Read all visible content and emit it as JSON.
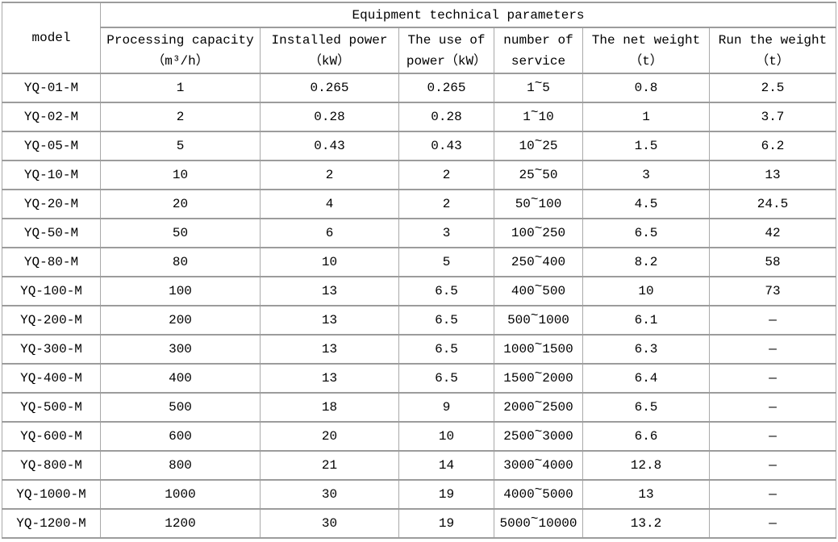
{
  "colors": {
    "background": "#ffffff",
    "grid_border": "#9c9c9c",
    "text": "#000000"
  },
  "table": {
    "title": "Equipment technical parameters",
    "model_header": "model",
    "columns": [
      {
        "id": "processing-capacity",
        "line1": "Processing capacity",
        "line2": "（m³/h）"
      },
      {
        "id": "installed-power",
        "line1": "Installed power",
        "line2": "（kW）"
      },
      {
        "id": "use-of-power",
        "line1": "The use of",
        "line2": "power（kW）"
      },
      {
        "id": "number-of-service",
        "line1": "number of",
        "line2": "service"
      },
      {
        "id": "net-weight",
        "line1": "The net weight",
        "line2": "（t）"
      },
      {
        "id": "run-weight",
        "line1": "Run the weight",
        "line2": "（t）"
      }
    ],
    "rows": [
      [
        "YQ-01-M",
        "1",
        "0.265",
        "0.265",
        "1~5",
        "0.8",
        "2.5"
      ],
      [
        "YQ-02-M",
        "2",
        "0.28",
        "0.28",
        "1~10",
        "1",
        "3.7"
      ],
      [
        "YQ-05-M",
        "5",
        "0.43",
        "0.43",
        "10~25",
        "1.5",
        "6.2"
      ],
      [
        "YQ-10-M",
        "10",
        "2",
        "2",
        "25~50",
        "3",
        "13"
      ],
      [
        "YQ-20-M",
        "20",
        "4",
        "2",
        "50~100",
        "4.5",
        "24.5"
      ],
      [
        "YQ-50-M",
        "50",
        "6",
        "3",
        "100~250",
        "6.5",
        "42"
      ],
      [
        "YQ-80-M",
        "80",
        "10",
        "5",
        "250~400",
        "8.2",
        "58"
      ],
      [
        "YQ-100-M",
        "100",
        "13",
        "6.5",
        "400~500",
        "10",
        "73"
      ],
      [
        "YQ-200-M",
        "200",
        "13",
        "6.5",
        "500~1000",
        "6.1",
        "—"
      ],
      [
        "YQ-300-M",
        "300",
        "13",
        "6.5",
        "1000~1500",
        "6.3",
        "—"
      ],
      [
        "YQ-400-M",
        "400",
        "13",
        "6.5",
        "1500~2000",
        "6.4",
        "—"
      ],
      [
        "YQ-500-M",
        "500",
        "18",
        "9",
        "2000~2500",
        "6.5",
        "—"
      ],
      [
        "YQ-600-M",
        "600",
        "20",
        "10",
        "2500~3000",
        "6.6",
        "—"
      ],
      [
        "YQ-800-M",
        "800",
        "21",
        "14",
        "3000~4000",
        "12.8",
        "—"
      ],
      [
        "YQ-1000-M",
        "1000",
        "30",
        "19",
        "4000~5000",
        "13",
        "—"
      ],
      [
        "YQ-1200-M",
        "1200",
        "30",
        "19",
        "5000~10000",
        "13.2",
        "—"
      ]
    ]
  }
}
